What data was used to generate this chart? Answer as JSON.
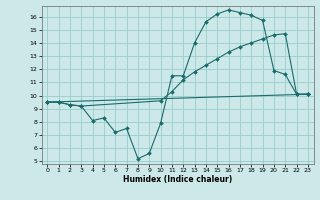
{
  "xlabel": "Humidex (Indice chaleur)",
  "bg_color": "#cce8e8",
  "grid_color": "#99cccc",
  "line_color": "#1a6b6b",
  "xlim": [
    -0.5,
    23.5
  ],
  "ylim": [
    4.8,
    16.8
  ],
  "xticks": [
    0,
    1,
    2,
    3,
    4,
    5,
    6,
    7,
    8,
    9,
    10,
    11,
    12,
    13,
    14,
    15,
    16,
    17,
    18,
    19,
    20,
    21,
    22,
    23
  ],
  "yticks": [
    5,
    6,
    7,
    8,
    9,
    10,
    11,
    12,
    13,
    14,
    15,
    16
  ],
  "line1": {
    "x": [
      0,
      1,
      2,
      3,
      4,
      5,
      6,
      7,
      8,
      9,
      10,
      11,
      12,
      13,
      14,
      15,
      16,
      17,
      18,
      19,
      20,
      21,
      22,
      23
    ],
    "y": [
      9.5,
      9.5,
      9.3,
      9.2,
      8.1,
      8.3,
      7.2,
      7.5,
      5.2,
      5.6,
      7.9,
      11.5,
      11.5,
      14.0,
      15.6,
      16.2,
      16.5,
      16.3,
      16.1,
      15.7,
      11.9,
      11.6,
      10.1,
      10.1
    ]
  },
  "line2": {
    "x": [
      0,
      23
    ],
    "y": [
      9.5,
      10.1
    ]
  },
  "line3": {
    "x": [
      0,
      1,
      2,
      3,
      10,
      11,
      12,
      13,
      14,
      15,
      16,
      17,
      18,
      19,
      20,
      21,
      22,
      23
    ],
    "y": [
      9.5,
      9.5,
      9.3,
      9.2,
      9.6,
      10.3,
      11.2,
      11.8,
      12.3,
      12.8,
      13.3,
      13.7,
      14.0,
      14.3,
      14.6,
      14.7,
      10.1,
      10.1
    ]
  }
}
